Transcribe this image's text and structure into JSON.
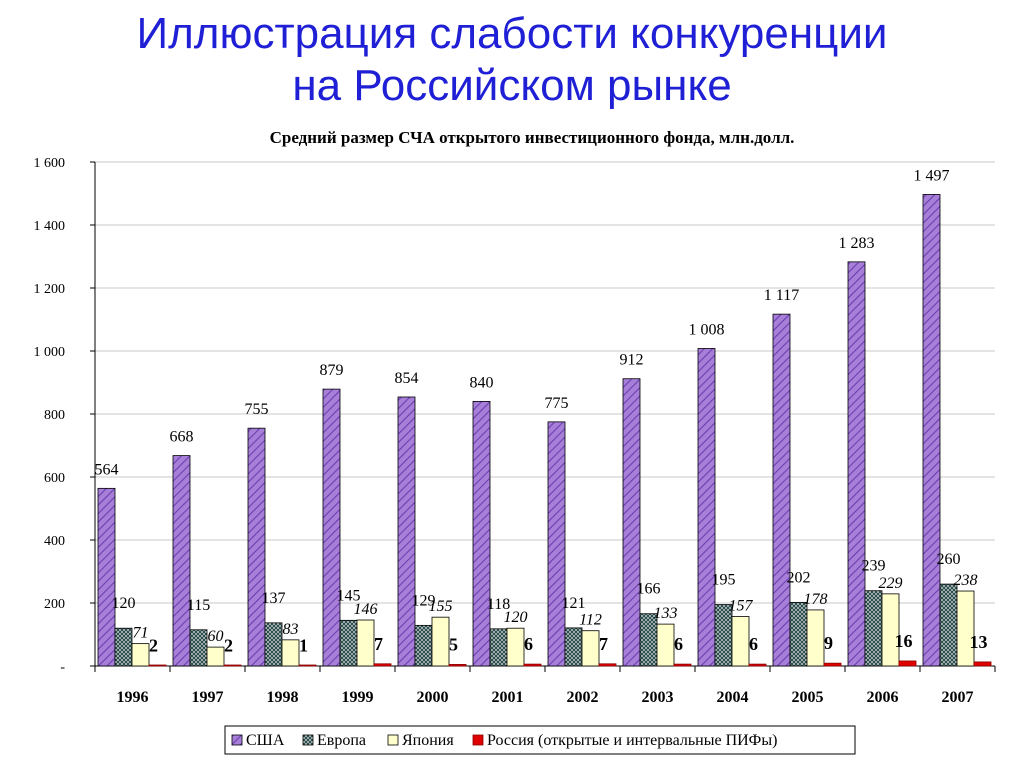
{
  "slide": {
    "title_line1": "Иллюстрация слабости конкуренции",
    "title_line2": "на Российском рынке"
  },
  "chart_data": {
    "type": "bar",
    "title": "Средний размер СЧА открытого инвестиционного фонда, млн.долл.",
    "categories": [
      "1996",
      "1997",
      "1998",
      "1999",
      "2000",
      "2001",
      "2002",
      "2003",
      "2004",
      "2005",
      "2006",
      "2007"
    ],
    "y_ticks": [
      "-",
      "200",
      "400",
      "600",
      "800",
      "1 000",
      "1 200",
      "1 400",
      "1 600"
    ],
    "ylim": [
      0,
      1600
    ],
    "grid": "horizontal",
    "legend_position": "bottom",
    "series": [
      {
        "name": "США",
        "color": "#9966cc",
        "pattern": "diagonal-hatch",
        "values": [
          564,
          668,
          755,
          879,
          854,
          840,
          775,
          912,
          1008,
          1117,
          1283,
          1497
        ],
        "labels": [
          "564",
          "668",
          "755",
          "879",
          "854",
          "840",
          "775",
          "912",
          "1 008",
          "1 117",
          "1 283",
          "1 497"
        ],
        "label_style": "normal"
      },
      {
        "name": "Европа",
        "color": "#2f4f4f",
        "pattern": "crosshatch",
        "values": [
          120,
          115,
          137,
          145,
          129,
          118,
          121,
          166,
          195,
          202,
          239,
          260
        ],
        "labels": [
          "120",
          "115",
          "137",
          "145",
          "129",
          "118",
          "121",
          "166",
          "195",
          "202",
          "239",
          "260"
        ],
        "label_style": "normal"
      },
      {
        "name": "Япония",
        "color": "#ffffcc",
        "pattern": "solid",
        "values": [
          71,
          60,
          83,
          146,
          155,
          120,
          112,
          133,
          157,
          178,
          229,
          238
        ],
        "labels": [
          "71",
          "60",
          "83",
          "146",
          "155",
          "120",
          "112",
          "133",
          "157",
          "178",
          "229",
          "238"
        ],
        "label_style": "italic"
      },
      {
        "name": "Россия (открытые и интервальные ПИФы)",
        "color": "#e00000",
        "pattern": "solid",
        "values": [
          2,
          2,
          1,
          7,
          5,
          6,
          7,
          6,
          6,
          9,
          16,
          13
        ],
        "labels": [
          "2",
          "2",
          "1",
          "7",
          "5",
          "6",
          "7",
          "6",
          "6",
          "9",
          "16",
          "13"
        ],
        "label_style": "bold"
      }
    ]
  }
}
